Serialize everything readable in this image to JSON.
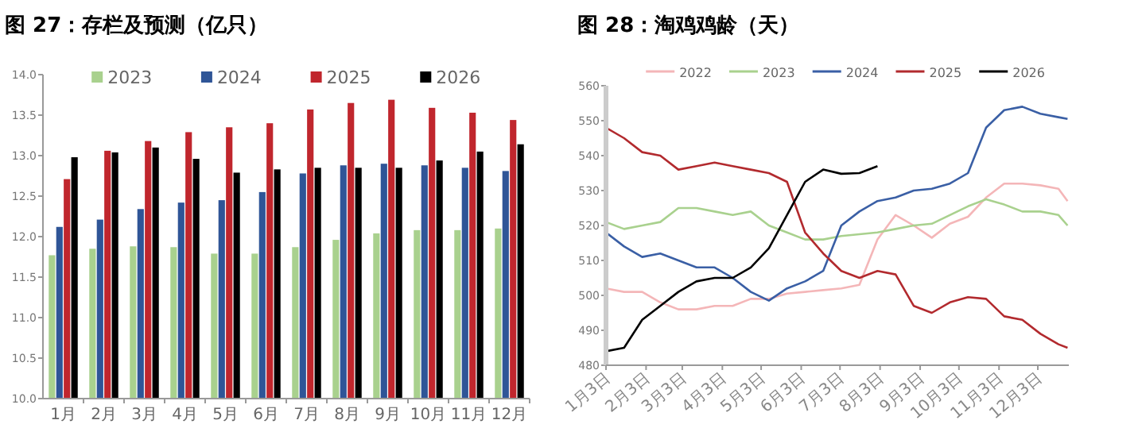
{
  "chart_data": [
    {
      "type": "bar",
      "title": "图 27：存栏及预测（亿只）",
      "categories": [
        "1月",
        "2月",
        "3月",
        "4月",
        "5月",
        "6月",
        "7月",
        "8月",
        "9月",
        "10月",
        "11月",
        "12月"
      ],
      "series": [
        {
          "name": "2023",
          "color": "#a9d18e",
          "values": [
            11.77,
            11.85,
            11.88,
            11.87,
            11.79,
            11.79,
            11.87,
            11.96,
            12.04,
            12.08,
            12.08,
            12.1
          ]
        },
        {
          "name": "2024",
          "color": "#2f5597",
          "values": [
            12.12,
            12.21,
            12.34,
            12.42,
            12.45,
            12.55,
            12.78,
            12.88,
            12.9,
            12.88,
            12.85,
            12.81
          ]
        },
        {
          "name": "2025",
          "color": "#c0262d",
          "values": [
            12.71,
            13.06,
            13.18,
            13.29,
            13.35,
            13.4,
            13.57,
            13.65,
            13.69,
            13.59,
            13.53,
            13.44
          ]
        },
        {
          "name": "2026",
          "color": "#000000",
          "values": [
            12.98,
            13.04,
            13.1,
            12.96,
            12.79,
            12.83,
            12.85,
            12.85,
            12.85,
            12.94,
            13.05,
            13.14
          ]
        }
      ],
      "ylim": [
        10,
        14
      ],
      "yticks": [
        {
          "value": 10,
          "label": "10.0"
        },
        {
          "value": 10.5,
          "label": "10.5"
        },
        {
          "value": 11,
          "label": "11.0"
        },
        {
          "value": 11.5,
          "label": "11.5"
        },
        {
          "value": 12,
          "label": "12.0"
        },
        {
          "value": 12.5,
          "label": "12.5"
        },
        {
          "value": 13,
          "label": "13.0"
        },
        {
          "value": 13.5,
          "label": "13.5"
        },
        {
          "value": 14,
          "label": "14.0"
        }
      ],
      "legend": "top"
    },
    {
      "type": "line",
      "title": "图 28：淘鸡鸡龄（天）",
      "x": [
        "--01-03",
        "--01-17",
        "--01-31",
        "--02-14",
        "--02-28",
        "--03-14",
        "--03-28",
        "--04-11",
        "--04-25",
        "--05-09",
        "--05-23",
        "--06-06",
        "--06-20",
        "--07-04",
        "--07-18",
        "--08-01",
        "--08-15",
        "--08-29",
        "--09-12",
        "--09-26",
        "--10-10",
        "--10-24",
        "--11-07",
        "--11-21",
        "--12-05",
        "--12-19",
        "--12-26"
      ],
      "series": [
        {
          "name": "2022",
          "color": "#f4b6b8",
          "values": [
            502,
            501,
            501,
            498,
            496,
            496,
            497,
            497,
            499,
            499,
            500.5,
            501,
            501.5,
            502,
            503,
            516,
            523,
            520,
            516.5,
            520.5,
            522.5,
            528,
            532,
            532,
            531.5,
            530.5,
            527
          ]
        },
        {
          "name": "2023",
          "color": "#a9d18e",
          "values": [
            521,
            519,
            520,
            521,
            525,
            525,
            524,
            523,
            524,
            520,
            518,
            516,
            516,
            517,
            517.5,
            518,
            519,
            520,
            520.5,
            523,
            525.5,
            527.5,
            526,
            524,
            524,
            523,
            520
          ]
        },
        {
          "name": "2024",
          "color": "#3a5fa5",
          "values": [
            518,
            514,
            511,
            512,
            510,
            508,
            508,
            505,
            501,
            498.5,
            502,
            504,
            507,
            520,
            524,
            527,
            528,
            530,
            530.5,
            532,
            535,
            548,
            553,
            554,
            552,
            551,
            550.5
          ]
        },
        {
          "name": "2025",
          "color": "#b22a2e",
          "values": [
            548,
            545,
            541,
            540,
            536,
            537,
            538,
            537,
            536,
            535,
            532.5,
            518,
            512,
            507,
            505,
            507,
            506,
            497,
            495,
            498,
            499.5,
            499,
            494,
            493,
            489,
            486,
            485
          ]
        },
        {
          "name": "2026",
          "color": "#000000",
          "values": [
            484,
            485,
            493,
            497,
            501,
            504,
            505,
            505,
            508,
            513.5,
            523,
            532.5,
            536,
            534.8,
            535,
            537,
            null,
            null,
            null,
            null,
            null,
            null,
            null,
            null,
            null,
            null,
            null
          ]
        }
      ],
      "xlim": [
        "--01-03",
        "--12-27"
      ],
      "xticks": [
        {
          "value": "--01-03",
          "label": "1月3日"
        },
        {
          "value": "--02-03",
          "label": "2月3日"
        },
        {
          "value": "--03-03",
          "label": "3月3日"
        },
        {
          "value": "--04-03",
          "label": "4月3日"
        },
        {
          "value": "--05-03",
          "label": "5月3日"
        },
        {
          "value": "--06-03",
          "label": "6月3日"
        },
        {
          "value": "--07-03",
          "label": "7月3日"
        },
        {
          "value": "--08-03",
          "label": "8月3日"
        },
        {
          "value": "--09-03",
          "label": "9月3日"
        },
        {
          "value": "--10-03",
          "label": "10月3日"
        },
        {
          "value": "--11-03",
          "label": "11月3日"
        },
        {
          "value": "--12-03",
          "label": "12月3日"
        }
      ],
      "ylim": [
        480,
        560
      ],
      "yticks": [
        480,
        490,
        500,
        510,
        520,
        530,
        540,
        550,
        560
      ],
      "legend": "top"
    }
  ]
}
